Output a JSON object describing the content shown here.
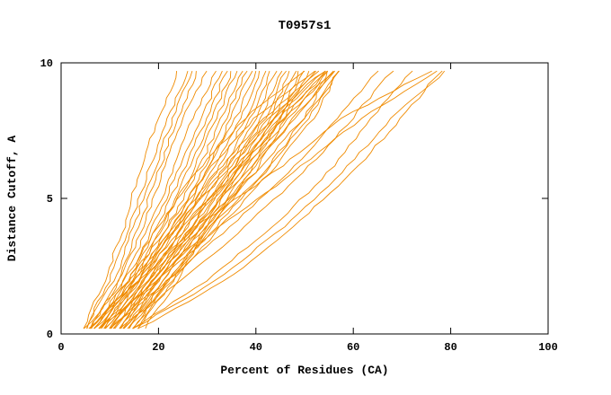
{
  "chart_data": {
    "type": "line",
    "title": "T0957s1",
    "xlabel": "Percent of Residues (CA)",
    "ylabel": "Distance Cutoff, A",
    "xlim": [
      0,
      100
    ],
    "ylim": [
      0,
      10
    ],
    "x_ticks": [
      0,
      20,
      40,
      60,
      80,
      100
    ],
    "y_ticks": [
      0,
      5,
      10
    ],
    "grid": false,
    "legend": "none",
    "line_color": "#f08b00",
    "axis_color": "#000000",
    "control_y_levels": [
      0.2,
      2,
      4,
      6,
      8,
      9.7
    ],
    "sample_y_step": 0.25,
    "curves_x_at_levels": [
      [
        4.5,
        9,
        13,
        16,
        20,
        24
      ],
      [
        5,
        10,
        14,
        18,
        22,
        26
      ],
      [
        5,
        11,
        15,
        19,
        23,
        27
      ],
      [
        6,
        12,
        16,
        20,
        24,
        28
      ],
      [
        6,
        12,
        17,
        21,
        25,
        30
      ],
      [
        7,
        13,
        18,
        23,
        27,
        32
      ],
      [
        7,
        14,
        19,
        24,
        29,
        33
      ],
      [
        8,
        14,
        20,
        25,
        30,
        34
      ],
      [
        8,
        15,
        21,
        26,
        31,
        35
      ],
      [
        9,
        15,
        21,
        27,
        32,
        36
      ],
      [
        9,
        16,
        22,
        28,
        33,
        37
      ],
      [
        10,
        16,
        23,
        29,
        34,
        38
      ],
      [
        10,
        17,
        23,
        30,
        35,
        39
      ],
      [
        11,
        17,
        24,
        30,
        36,
        40
      ],
      [
        11,
        18,
        25,
        31,
        37,
        41
      ],
      [
        12,
        18,
        25,
        32,
        38,
        42
      ],
      [
        12,
        19,
        26,
        33,
        39,
        43
      ],
      [
        13,
        19,
        27,
        34,
        40,
        44
      ],
      [
        13,
        20,
        27,
        35,
        41,
        45
      ],
      [
        14,
        20,
        28,
        35,
        42,
        46
      ],
      [
        14,
        21,
        29,
        36,
        43,
        47
      ],
      [
        15,
        21,
        29,
        37,
        44,
        48
      ],
      [
        15,
        22,
        30,
        38,
        45,
        49
      ],
      [
        16,
        22,
        31,
        39,
        45,
        50
      ],
      [
        16,
        23,
        31,
        40,
        46,
        51
      ],
      [
        6,
        14,
        22,
        30,
        40,
        52
      ],
      [
        7,
        15,
        23,
        32,
        42,
        53
      ],
      [
        8,
        16,
        24,
        33,
        43,
        54
      ],
      [
        9,
        17,
        26,
        35,
        45,
        55
      ],
      [
        10,
        18,
        27,
        36,
        46,
        56
      ],
      [
        5,
        13,
        20,
        28,
        38,
        50
      ],
      [
        6,
        15,
        24,
        34,
        44,
        52
      ],
      [
        7,
        16,
        25,
        36,
        46,
        54
      ],
      [
        11,
        19,
        28,
        37,
        47,
        55
      ],
      [
        12,
        20,
        30,
        39,
        48,
        56
      ],
      [
        8,
        18,
        28,
        38,
        48,
        56
      ],
      [
        9,
        19,
        29,
        40,
        50,
        57
      ],
      [
        10,
        20,
        31,
        42,
        51,
        57
      ],
      [
        13,
        22,
        32,
        42,
        50,
        55
      ],
      [
        14,
        23,
        33,
        43,
        52,
        57
      ],
      [
        17,
        24,
        30,
        36,
        44,
        54
      ],
      [
        10,
        22,
        35,
        47,
        57,
        65
      ],
      [
        12,
        25,
        38,
        50,
        60,
        68
      ],
      [
        15,
        30,
        44,
        55,
        64,
        72
      ],
      [
        16,
        34,
        48,
        60,
        70,
        78
      ],
      [
        15,
        32,
        46,
        58,
        68,
        79
      ],
      [
        8,
        20,
        33,
        48,
        62,
        77
      ],
      [
        6,
        16,
        28,
        44,
        58,
        76
      ]
    ]
  }
}
